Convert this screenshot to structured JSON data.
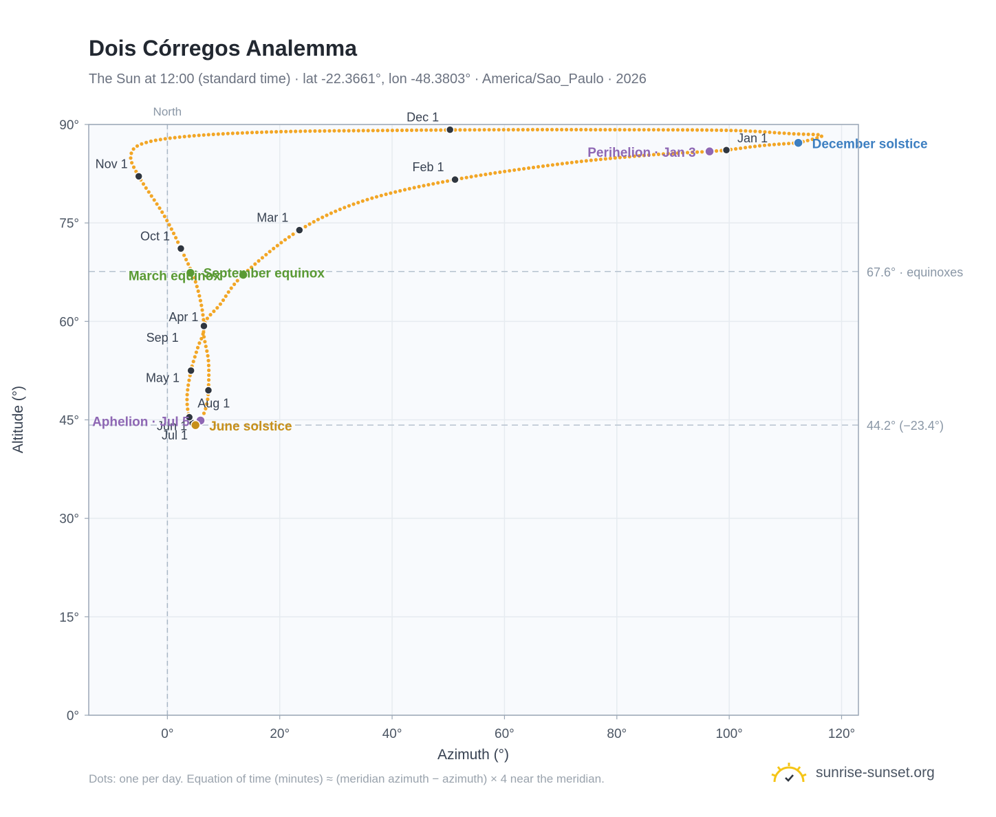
{
  "title": "Dois Córregos Analemma",
  "subtitle": "The Sun at 12:00 (standard time) · lat -22.3661°, lon -48.3803° · America/Sao_Paulo · 2026",
  "footnote": "Dots: one per day. Equation of time (minutes) ≈ (meridian azimuth − azimuth) × 4 near the meridian.",
  "brand": {
    "name": "sunrise-sunset.org",
    "logo_icon": "sun-check-icon",
    "logo_color": "#f5c518"
  },
  "chart_data": {
    "type": "scatter",
    "xlabel": "Azimuth (°)",
    "ylabel": "Altitude (°)",
    "xlim": [
      -14,
      123
    ],
    "ylim": [
      0,
      90
    ],
    "x_ticks": [
      0,
      20,
      40,
      60,
      80,
      100,
      120
    ],
    "y_ticks": [
      0,
      15,
      30,
      45,
      60,
      75,
      90
    ],
    "x_tick_labels": [
      "0°",
      "20°",
      "40°",
      "60°",
      "80°",
      "100°",
      "120°"
    ],
    "y_tick_labels": [
      "0°",
      "15°",
      "30°",
      "45°",
      "60°",
      "75°",
      "90°"
    ],
    "grid": true,
    "north_label": "North",
    "north_azimuth": 0,
    "reference_lines": [
      {
        "y": 67.6,
        "label": "67.6° · equinoxes"
      },
      {
        "y": 44.2,
        "label": "44.2° (−23.4°)"
      }
    ],
    "path_anchors": [
      {
        "x": 112.3,
        "y": 87.2
      },
      {
        "x": 116.5,
        "y": 88.3
      },
      {
        "x": 111,
        "y": 88.6
      },
      {
        "x": 100,
        "y": 89.1
      },
      {
        "x": 80,
        "y": 89.2
      },
      {
        "x": 60,
        "y": 89.2
      },
      {
        "x": 40,
        "y": 89.1
      },
      {
        "x": 20,
        "y": 88.9
      },
      {
        "x": 5,
        "y": 88.3
      },
      {
        "x": -4,
        "y": 87.2
      },
      {
        "x": -6.5,
        "y": 85.3
      },
      {
        "x": -5.1,
        "y": 82.1
      },
      {
        "x": -0.7,
        "y": 76.3
      },
      {
        "x": 2.4,
        "y": 71.1
      },
      {
        "x": 5.2,
        "y": 65.5
      },
      {
        "x": 6.5,
        "y": 59.3
      },
      {
        "x": 5.4,
        "y": 56
      },
      {
        "x": 4.2,
        "y": 52.5
      },
      {
        "x": 3.5,
        "y": 48.5
      },
      {
        "x": 3.9,
        "y": 45.4
      },
      {
        "x": 5,
        "y": 44.2
      },
      {
        "x": 5.9,
        "y": 44.9
      },
      {
        "x": 6.9,
        "y": 47
      },
      {
        "x": 7.3,
        "y": 49.5
      },
      {
        "x": 7.3,
        "y": 54
      },
      {
        "x": 6.5,
        "y": 59.3
      },
      {
        "x": 9.4,
        "y": 62.6
      },
      {
        "x": 13.5,
        "y": 67.1
      },
      {
        "x": 23.5,
        "y": 73.9
      },
      {
        "x": 35,
        "y": 78.4
      },
      {
        "x": 51.2,
        "y": 81.6
      },
      {
        "x": 70,
        "y": 84
      },
      {
        "x": 85,
        "y": 85.3
      },
      {
        "x": 96.5,
        "y": 85.9
      },
      {
        "x": 99.5,
        "y": 86.1
      },
      {
        "x": 106,
        "y": 86.8
      },
      {
        "x": 112.3,
        "y": 87.2
      }
    ],
    "month_markers": [
      {
        "label": "Jan 1",
        "x": 99.5,
        "y": 86.1
      },
      {
        "label": "Feb 1",
        "x": 51.2,
        "y": 81.6
      },
      {
        "label": "Mar 1",
        "x": 23.5,
        "y": 73.9
      },
      {
        "label": "Apr 1",
        "x": 6.5,
        "y": 59.3
      },
      {
        "label": "May 1",
        "x": 7.3,
        "y": 49.5
      },
      {
        "label": "Jun 1",
        "x": 4.5,
        "y": 44.5
      },
      {
        "label": "Jul 1",
        "x": 5.1,
        "y": 44.1
      },
      {
        "label": "Aug 1",
        "x": 3.9,
        "y": 45.4
      },
      {
        "label": "Sep 1",
        "x": 4.2,
        "y": 52.5
      },
      {
        "label": "Oct 1",
        "x": 2.4,
        "y": 71.1
      },
      {
        "label": "Nov 1",
        "x": -5.1,
        "y": 82.1
      },
      {
        "label": "Dec 1",
        "x": 50.3,
        "y": 89.2
      }
    ],
    "events": [
      {
        "label": "December solstice",
        "x": 112.3,
        "y": 87.2,
        "color": "#3d7fc1"
      },
      {
        "label": "Perihelion · Jan 3",
        "x": 96.5,
        "y": 85.9,
        "color": "#8e67b4"
      },
      {
        "label": "March equinox",
        "x": 4.1,
        "y": 67.4,
        "color": "#5a9a34"
      },
      {
        "label": "September equinox",
        "x": 13.5,
        "y": 67.1,
        "color": "#5a9a34"
      },
      {
        "label": "Aphelion · Jul 5",
        "x": 5.9,
        "y": 44.9,
        "color": "#8e67b4"
      },
      {
        "label": "June solstice",
        "x": 5,
        "y": 44.2,
        "color": "#c7901a"
      }
    ],
    "colors": {
      "path": "#f2a626",
      "marker": "#2f3640",
      "grid": "#e6ebf0",
      "plot_bg": "#f8fafd"
    }
  }
}
